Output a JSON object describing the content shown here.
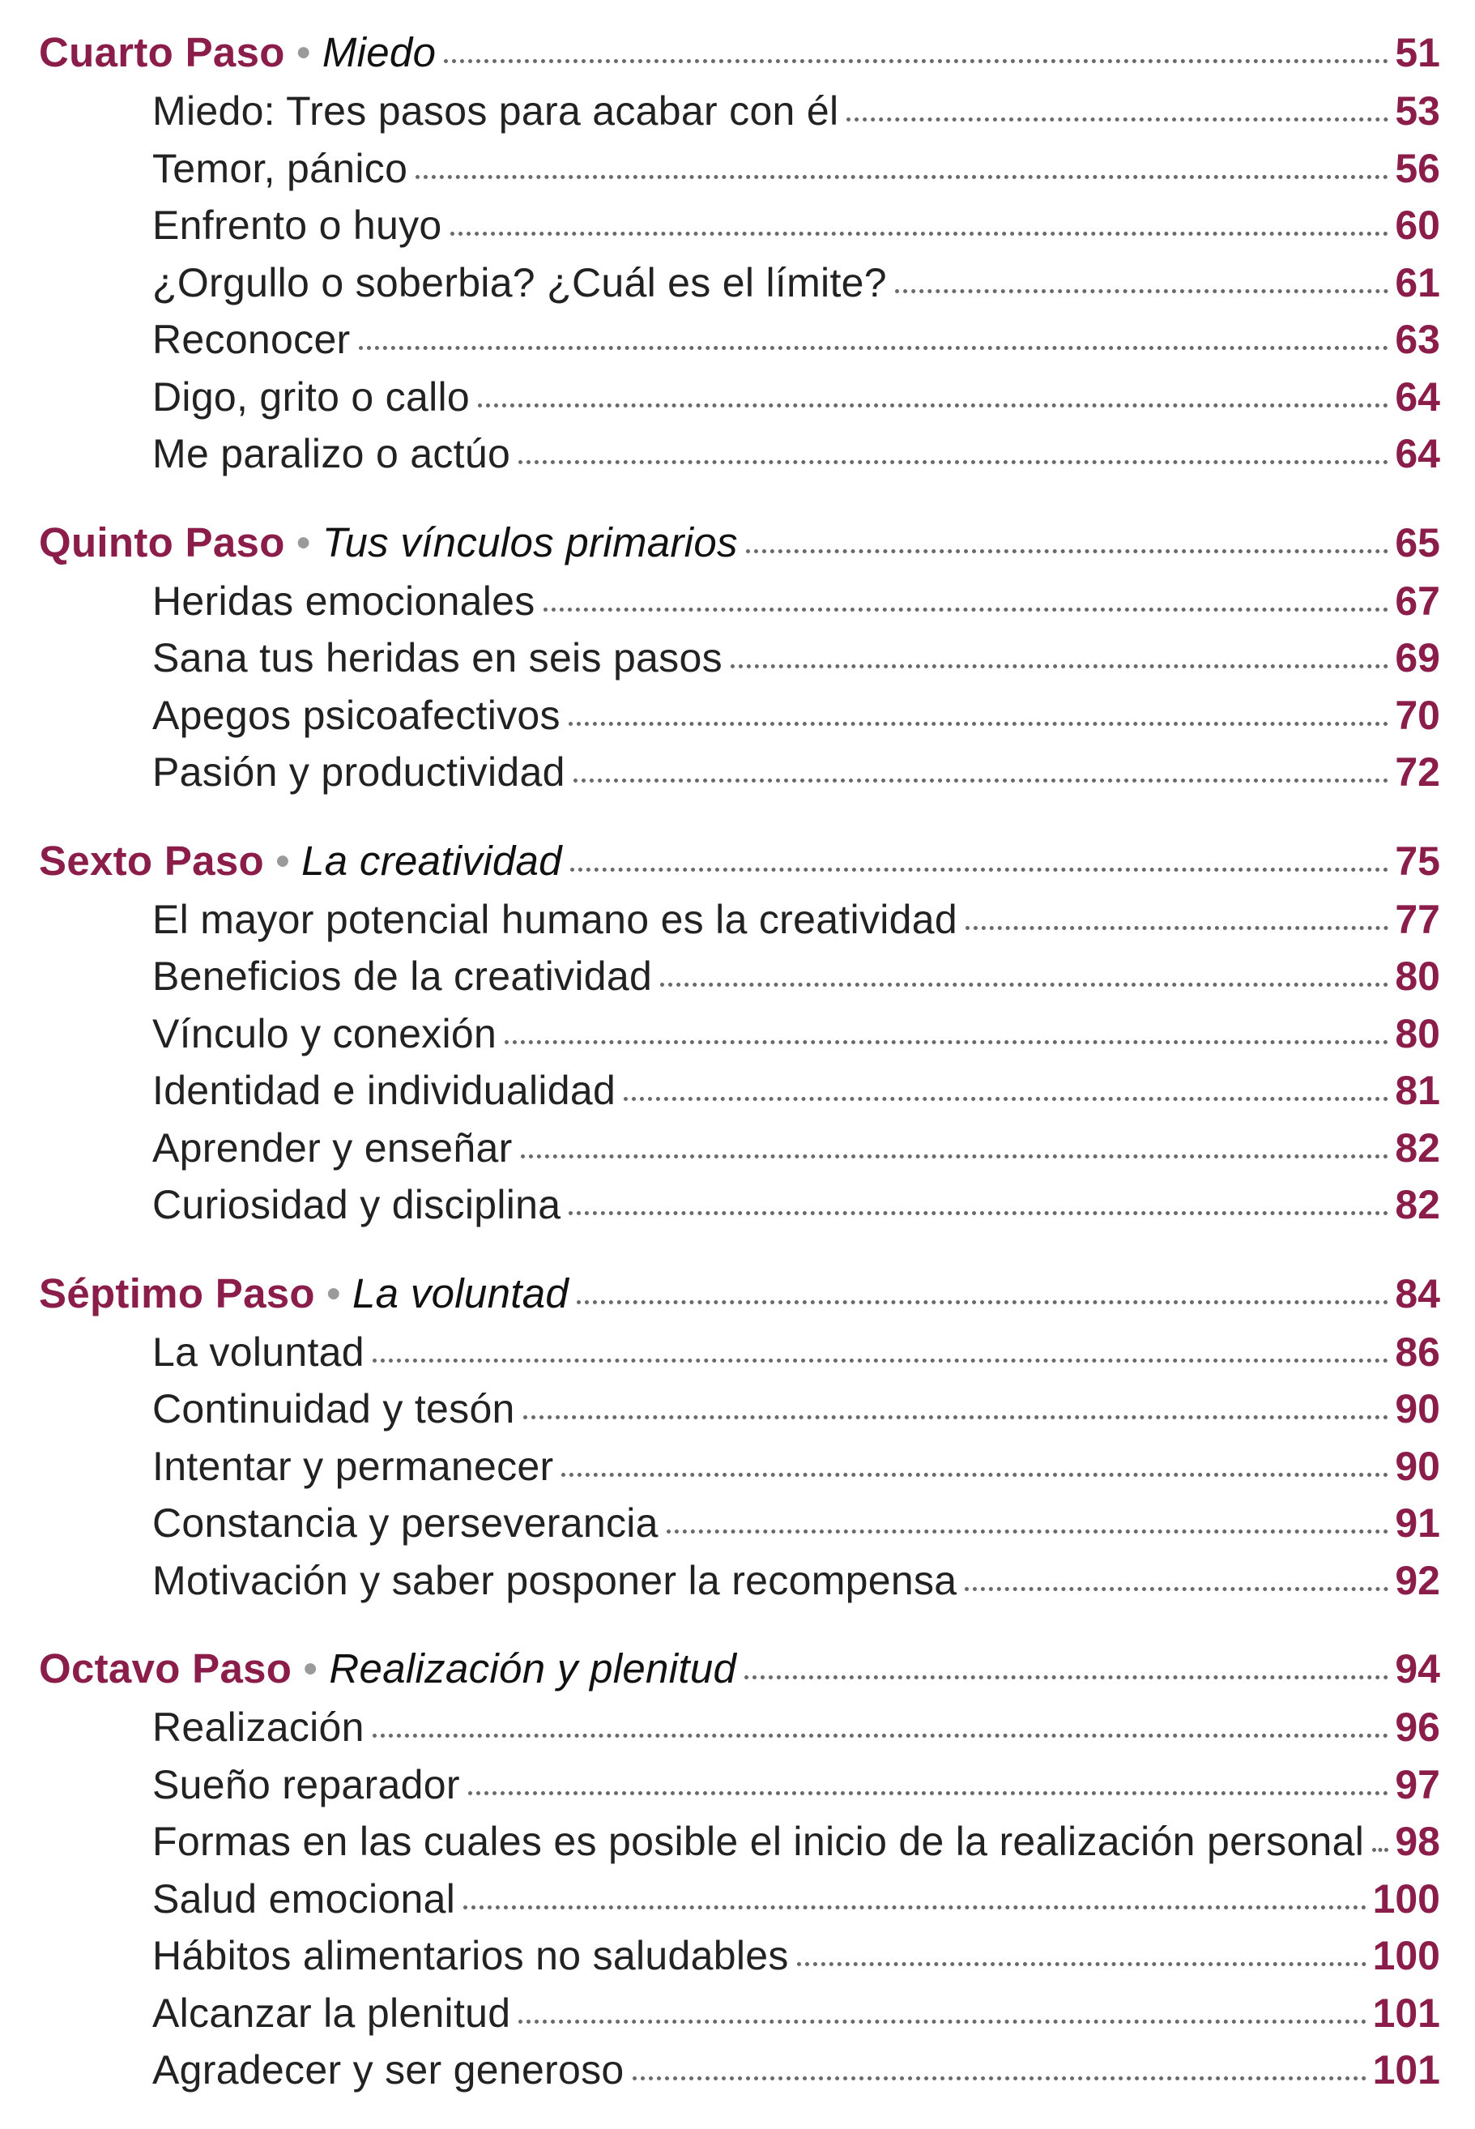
{
  "sections": [
    {
      "step": "Cuarto Paso",
      "separator": "•",
      "theme": "Miedo",
      "page": "51",
      "entries": [
        {
          "title": "Miedo: Tres pasos para acabar con él",
          "page": "53"
        },
        {
          "title": "Temor, pánico",
          "page": "56"
        },
        {
          "title": "Enfrento o huyo",
          "page": "60"
        },
        {
          "title": "¿Orgullo o soberbia? ¿Cuál es el límite?",
          "page": "61"
        },
        {
          "title": "Reconocer",
          "page": "63"
        },
        {
          "title": "Digo, grito o callo",
          "page": "64"
        },
        {
          "title": "Me paralizo o actúo",
          "page": "64"
        }
      ]
    },
    {
      "step": "Quinto Paso",
      "separator": "•",
      "theme": "Tus vínculos primarios",
      "page": "65",
      "entries": [
        {
          "title": "Heridas emocionales",
          "page": "67"
        },
        {
          "title": "Sana tus heridas en seis pasos",
          "page": "69"
        },
        {
          "title": "Apegos psicoafectivos",
          "page": "70"
        },
        {
          "title": "Pasión y productividad",
          "page": "72"
        }
      ]
    },
    {
      "step": "Sexto Paso",
      "separator": "•",
      "theme": "La creatividad",
      "page": "75",
      "entries": [
        {
          "title": "El mayor potencial humano es la creatividad",
          "page": "77"
        },
        {
          "title": "Beneficios de la creatividad",
          "page": "80"
        },
        {
          "title": "Vínculo y conexión",
          "page": "80"
        },
        {
          "title": "Identidad e individualidad",
          "page": "81"
        },
        {
          "title": "Aprender y enseñar",
          "page": "82"
        },
        {
          "title": "Curiosidad y disciplina",
          "page": "82"
        }
      ]
    },
    {
      "step": "Séptimo Paso",
      "separator": "•",
      "theme": "La voluntad",
      "page": "84",
      "entries": [
        {
          "title": "La voluntad",
          "page": "86"
        },
        {
          "title": "Continuidad y tesón",
          "page": "90"
        },
        {
          "title": "Intentar y permanecer",
          "page": "90"
        },
        {
          "title": "Constancia y perseverancia",
          "page": "91"
        },
        {
          "title": "Motivación y saber posponer la recompensa",
          "page": "92"
        }
      ]
    },
    {
      "step": "Octavo Paso",
      "separator": "•",
      "theme": "Realización y plenitud",
      "page": "94",
      "entries": [
        {
          "title": "Realización",
          "page": "96"
        },
        {
          "title": "Sueño reparador",
          "page": "97"
        },
        {
          "title": "Formas en las cuales es posible el inicio de la realización personal",
          "page": "98"
        },
        {
          "title": "Salud emocional",
          "page": "100"
        },
        {
          "title": "Hábitos alimentarios no saludables",
          "page": "100"
        },
        {
          "title": "Alcanzar la plenitud",
          "page": "101"
        },
        {
          "title": "Agradecer y ser generoso",
          "page": "101"
        }
      ]
    }
  ]
}
